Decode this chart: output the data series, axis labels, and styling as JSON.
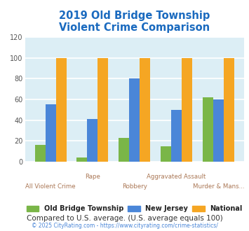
{
  "title": "2019 Old Bridge Township\nViolent Crime Comparison",
  "title_color": "#1a6abf",
  "title_fontsize": 10.5,
  "categories": [
    "All Violent Crime",
    "Rape",
    "Robbery",
    "Aggravated Assault",
    "Murder & Mans..."
  ],
  "series": {
    "Old Bridge Township": [
      16,
      4,
      23,
      15,
      62
    ],
    "New Jersey": [
      55,
      41,
      80,
      50,
      60
    ],
    "National": [
      100,
      100,
      100,
      100,
      100
    ]
  },
  "colors": {
    "Old Bridge Township": "#7ab648",
    "New Jersey": "#4a86d8",
    "National": "#f5a623"
  },
  "legend_labels": [
    "Old Bridge Township",
    "New Jersey",
    "National"
  ],
  "ylim": [
    0,
    120
  ],
  "yticks": [
    0,
    20,
    40,
    60,
    80,
    100,
    120
  ],
  "plot_bg_color": "#dceef5",
  "fig_bg_color": "#ffffff",
  "grid_color": "#ffffff",
  "footer_text": "Compared to U.S. average. (U.S. average equals 100)",
  "footer_color": "#333333",
  "copyright_text": "© 2025 CityRating.com - https://www.cityrating.com/crime-statistics/",
  "copyright_color": "#4a86d8",
  "bar_width": 0.25,
  "xlabel_color": "#aa7755"
}
